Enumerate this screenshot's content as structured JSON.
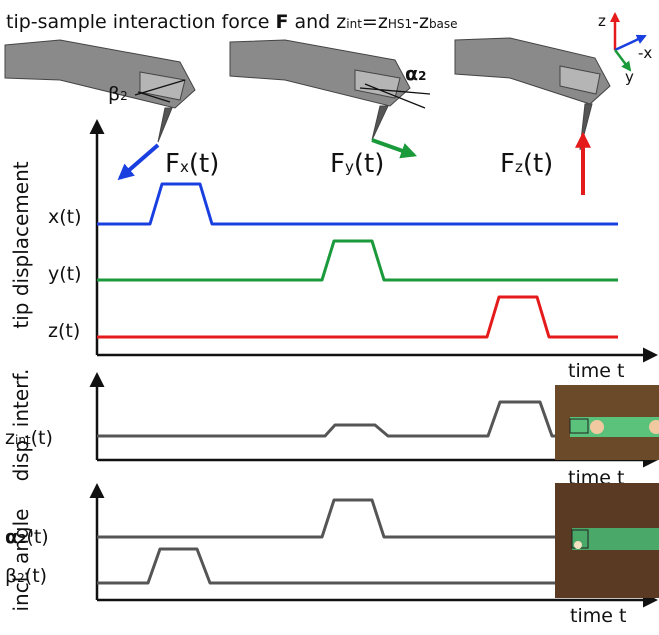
{
  "title": {
    "lead": "tip-sample interaction force ",
    "bold": "F",
    "mid": " and z",
    "sub1": "int",
    "eq": "=z",
    "sub2": "HS1",
    "minus": "-z",
    "sub3": "base"
  },
  "triad": {
    "z": "z",
    "x": "-x",
    "y": "y"
  },
  "cantilever_angles": [
    {
      "base": "β",
      "sub": "2"
    },
    {
      "base": "α",
      "sub": "2"
    }
  ],
  "forces": [
    {
      "base": "F",
      "sub": "x",
      "tail": "(t)"
    },
    {
      "base": "F",
      "sub": "y",
      "tail": "(t)"
    },
    {
      "base": "F",
      "sub": "z",
      "tail": "(t)"
    }
  ],
  "panels": [
    {
      "ylabel": "tip displacement",
      "traces": [
        {
          "label": "x(t)"
        },
        {
          "label": "y(t)"
        },
        {
          "label": "z(t)"
        }
      ],
      "xlabel": "time t"
    },
    {
      "ylabel": "disp. interf.",
      "traces": [
        {
          "base": "z",
          "sub": "int",
          "tail": "(t)"
        }
      ],
      "xlabel": "time t"
    },
    {
      "ylabel": "incl. angle",
      "traces": [
        {
          "base": "α",
          "sub": "2",
          "tail": "(t)"
        },
        {
          "base": "β",
          "sub": "2",
          "tail": "(t)"
        }
      ],
      "xlabel": "time t"
    }
  ]
}
